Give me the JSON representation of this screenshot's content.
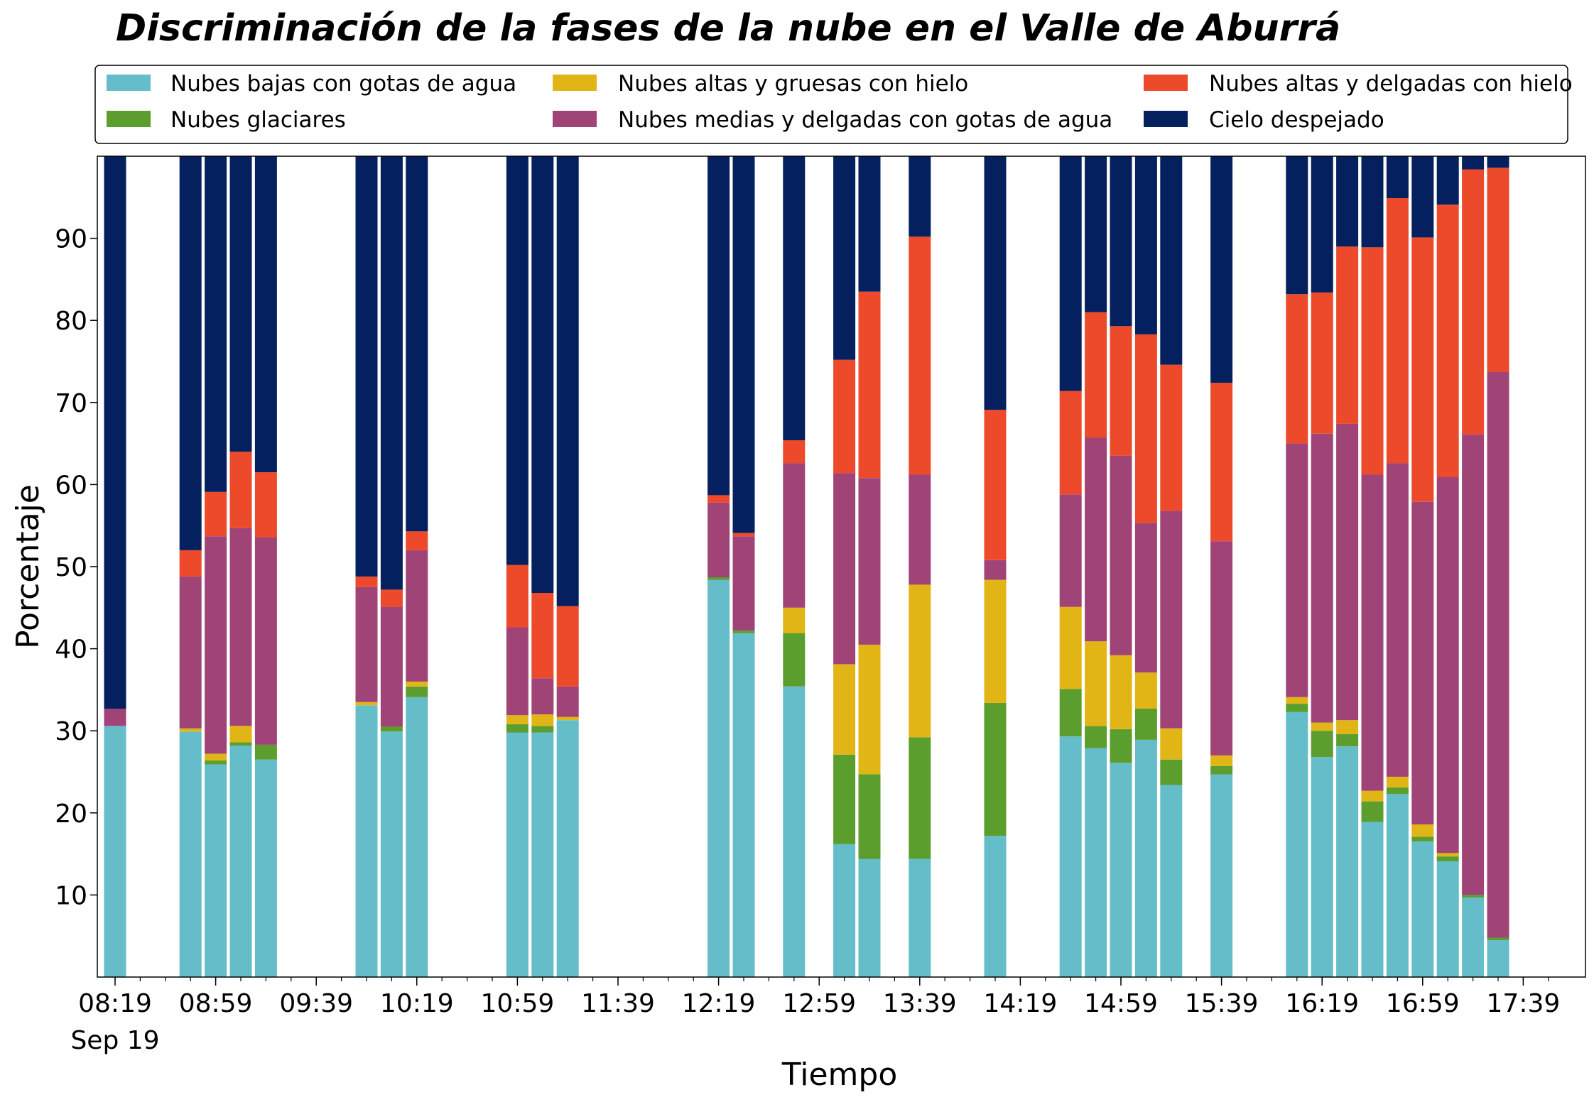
{
  "chart_data": {
    "type": "bar",
    "stacked": true,
    "title": "Discriminación de la fases de la nube en el Valle de Aburrá",
    "xlabel": "Tiempo",
    "ylabel": "Porcentaje",
    "ylim": [
      0,
      100
    ],
    "yticks": [
      10,
      20,
      30,
      40,
      50,
      60,
      70,
      80,
      90
    ],
    "xticks": [
      "08:19",
      "08:59",
      "09:39",
      "10:19",
      "10:59",
      "11:39",
      "12:19",
      "12:59",
      "13:39",
      "14:19",
      "14:59",
      "15:39",
      "16:19",
      "16:59",
      "17:39"
    ],
    "xtick_sub": "Sep 19",
    "grid": false,
    "legend_position": "top",
    "x": [
      "08:19",
      "08:49",
      "08:59",
      "09:09",
      "09:19",
      "09:59",
      "10:09",
      "10:19",
      "10:59",
      "11:09",
      "11:19",
      "12:19",
      "12:29",
      "12:49",
      "13:09",
      "13:19",
      "13:39",
      "14:09",
      "14:39",
      "14:49",
      "14:59",
      "15:09",
      "15:19",
      "15:39",
      "16:09",
      "16:19",
      "16:29",
      "16:39",
      "16:49",
      "16:59",
      "17:09",
      "17:19",
      "17:29"
    ],
    "series": [
      {
        "name": "Nubes bajas con gotas de agua",
        "color": "#64bdc9",
        "values": [
          30.6,
          29.9,
          25.9,
          28.2,
          26.5,
          33.1,
          29.9,
          34.1,
          29.8,
          29.8,
          31.3,
          48.4,
          41.9,
          35.4,
          16.2,
          14.4,
          14.4,
          17.2,
          29.3,
          27.9,
          26.1,
          28.9,
          23.4,
          24.7,
          32.3,
          26.8,
          28.1,
          18.9,
          22.3,
          16.5,
          14.1,
          9.7,
          4.5
        ]
      },
      {
        "name": "Nubes glaciares",
        "color": "#5c9e2e",
        "values": [
          0,
          0,
          0.5,
          0.4,
          1.8,
          0,
          0.6,
          1.3,
          1.0,
          0.8,
          0,
          0.3,
          0.3,
          6.5,
          10.9,
          10.3,
          14.8,
          16.2,
          5.8,
          2.7,
          4.1,
          3.8,
          3.1,
          1.0,
          1.0,
          3.2,
          1.5,
          2.5,
          0.8,
          0.6,
          0.6,
          0.3,
          0.3
        ]
      },
      {
        "name": "Nubes altas y gruesas con hielo",
        "color": "#e2b516",
        "values": [
          0,
          0.4,
          0.8,
          2.0,
          0,
          0.4,
          0,
          0.6,
          1.1,
          1.4,
          0.4,
          0,
          0,
          3.1,
          11.0,
          15.8,
          18.6,
          15.0,
          10.0,
          10.3,
          9.0,
          4.4,
          3.8,
          1.3,
          0.8,
          1.0,
          1.7,
          1.3,
          1.3,
          1.5,
          0.4,
          0,
          0
        ]
      },
      {
        "name": "Nubes medias y delgadas con gotas de agua",
        "color": "#a04478",
        "values": [
          2.1,
          18.5,
          26.5,
          24.1,
          25.3,
          14.0,
          14.6,
          16.0,
          10.7,
          4.4,
          3.7,
          9.1,
          11.5,
          17.6,
          23.3,
          20.3,
          13.4,
          2.4,
          13.7,
          24.8,
          24.3,
          18.2,
          26.5,
          26.1,
          30.9,
          35.2,
          36.1,
          38.5,
          38.2,
          39.3,
          45.8,
          56.1,
          68.9
        ]
      },
      {
        "name": "Nubes altas y delgadas con hielo",
        "color": "#ec4a2a",
        "values": [
          0,
          3.2,
          5.4,
          9.3,
          7.9,
          1.3,
          2.1,
          2.3,
          7.6,
          10.4,
          9.8,
          0.9,
          0.4,
          2.8,
          13.8,
          22.7,
          29.0,
          18.3,
          12.6,
          15.3,
          15.8,
          23.0,
          17.8,
          19.3,
          18.2,
          17.2,
          21.6,
          27.7,
          32.3,
          32.2,
          33.2,
          32.3,
          24.9
        ]
      },
      {
        "name": "Cielo despejado",
        "color": "#04205e",
        "values": [
          67.3,
          48.0,
          40.9,
          36.0,
          38.5,
          51.2,
          52.8,
          45.7,
          49.8,
          53.2,
          54.8,
          41.3,
          45.9,
          34.6,
          24.8,
          16.5,
          9.8,
          30.9,
          28.6,
          19.0,
          20.7,
          21.7,
          25.4,
          27.6,
          16.8,
          16.6,
          11.0,
          11.1,
          5.1,
          9.9,
          5.9,
          1.7,
          1.4
        ]
      }
    ]
  }
}
